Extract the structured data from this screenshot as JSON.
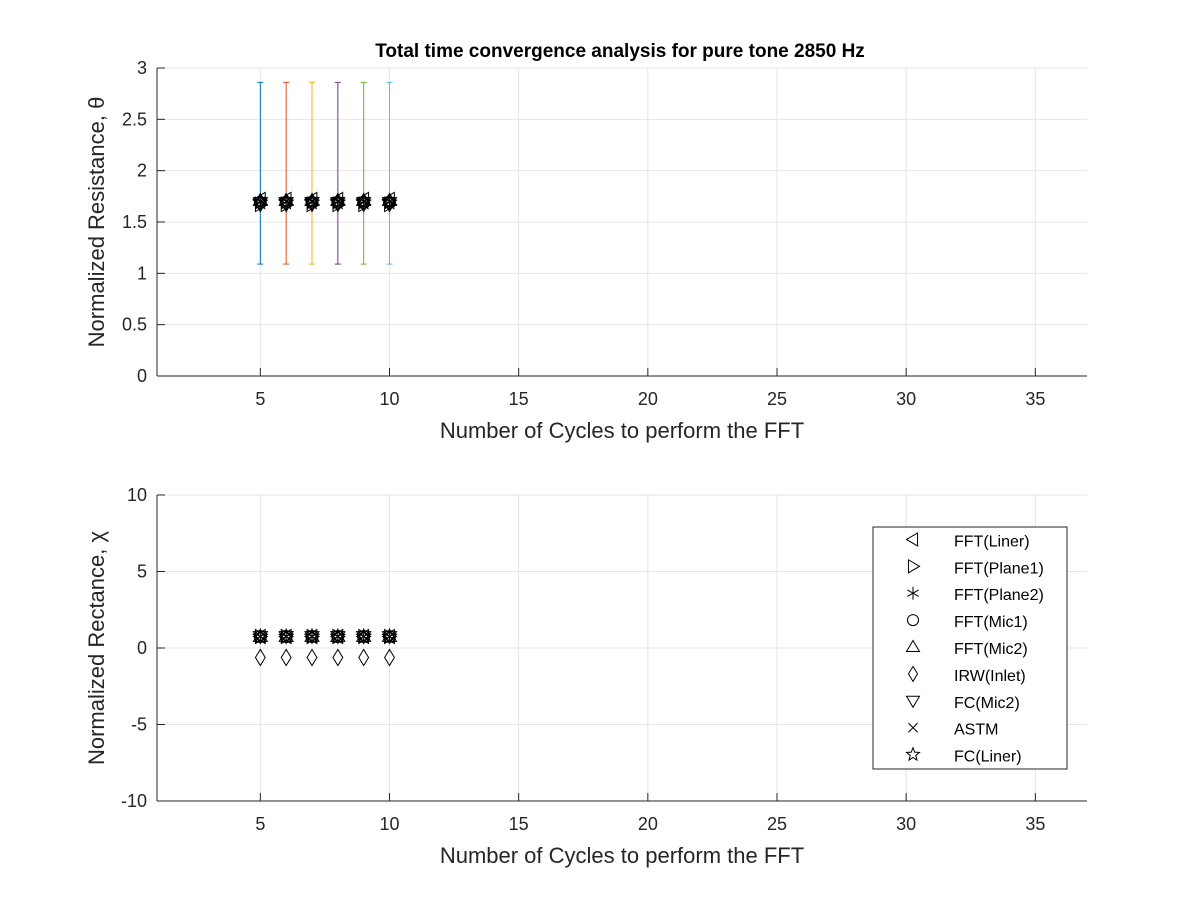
{
  "chart_data": [
    {
      "type": "scatter",
      "title": "Total time convergence analysis for pure tone 2850 Hz",
      "xlabel": "Number of Cycles to perform the FFT",
      "ylabel": "Normalized Resistance, θ",
      "xlim": [
        1,
        37
      ],
      "ylim": [
        0,
        3
      ],
      "xticks": [
        "5",
        "10",
        "15",
        "20",
        "25",
        "30",
        "35"
      ],
      "yticks": [
        "0",
        "0.5",
        "1",
        "1.5",
        "2",
        "2.5",
        "3"
      ],
      "grid": true,
      "x": [
        5,
        6,
        7,
        8,
        9,
        10
      ],
      "errorbars": {
        "lower": [
          1.09,
          1.09,
          1.09,
          1.09,
          1.09,
          1.09
        ],
        "upper": [
          2.86,
          2.86,
          2.86,
          2.86,
          2.86,
          2.86
        ],
        "colors": [
          "#0072BD",
          "#D95319",
          "#EDB120",
          "#7E2F8E",
          "#77AC30",
          "#4DBEEE"
        ]
      },
      "series": [
        {
          "name": "FFT(Liner)",
          "marker": "triangle-left",
          "values": [
            1.72,
            1.72,
            1.72,
            1.72,
            1.72,
            1.72
          ]
        },
        {
          "name": "FFT(Plane1)",
          "marker": "triangle-right",
          "values": [
            1.67,
            1.67,
            1.67,
            1.67,
            1.67,
            1.67
          ]
        },
        {
          "name": "FFT(Plane2)",
          "marker": "asterisk",
          "values": [
            1.7,
            1.7,
            1.7,
            1.7,
            1.7,
            1.7
          ]
        },
        {
          "name": "FFT(Mic1)",
          "marker": "circle",
          "values": [
            1.69,
            1.69,
            1.69,
            1.69,
            1.69,
            1.69
          ]
        },
        {
          "name": "FFT(Mic2)",
          "marker": "triangle-up",
          "values": [
            1.71,
            1.71,
            1.71,
            1.71,
            1.71,
            1.71
          ]
        },
        {
          "name": "IRW(Inlet)",
          "marker": "diamond",
          "values": [
            1.68,
            1.68,
            1.68,
            1.68,
            1.68,
            1.68
          ]
        },
        {
          "name": "FC(Mic2)",
          "marker": "triangle-down",
          "values": [
            1.69,
            1.69,
            1.69,
            1.69,
            1.69,
            1.69
          ]
        },
        {
          "name": "ASTM",
          "marker": "cross",
          "values": [
            1.7,
            1.7,
            1.7,
            1.7,
            1.7,
            1.7
          ]
        },
        {
          "name": "FC(Liner)",
          "marker": "star",
          "values": [
            1.69,
            1.69,
            1.69,
            1.69,
            1.69,
            1.69
          ]
        }
      ]
    },
    {
      "type": "scatter",
      "title": "",
      "xlabel": "Number of Cycles to perform the FFT",
      "ylabel": "Normalized Rectance, χ",
      "xlim": [
        1,
        37
      ],
      "ylim": [
        -10,
        10
      ],
      "xticks": [
        "5",
        "10",
        "15",
        "20",
        "25",
        "30",
        "35"
      ],
      "yticks": [
        "-10",
        "-5",
        "0",
        "5",
        "10"
      ],
      "grid": true,
      "legend_position": "right",
      "x": [
        5,
        6,
        7,
        8,
        9,
        10
      ],
      "series": [
        {
          "name": "FFT(Liner)",
          "marker": "triangle-left",
          "values": [
            0.75,
            0.75,
            0.75,
            0.75,
            0.75,
            0.75
          ]
        },
        {
          "name": "FFT(Plane1)",
          "marker": "triangle-right",
          "values": [
            0.75,
            0.75,
            0.75,
            0.75,
            0.75,
            0.75
          ]
        },
        {
          "name": "FFT(Plane2)",
          "marker": "asterisk",
          "values": [
            0.75,
            0.75,
            0.75,
            0.75,
            0.75,
            0.75
          ]
        },
        {
          "name": "FFT(Mic1)",
          "marker": "circle",
          "values": [
            0.75,
            0.75,
            0.75,
            0.75,
            0.75,
            0.75
          ]
        },
        {
          "name": "FFT(Mic2)",
          "marker": "triangle-up",
          "values": [
            0.75,
            0.75,
            0.75,
            0.75,
            0.75,
            0.75
          ]
        },
        {
          "name": "IRW(Inlet)",
          "marker": "diamond",
          "values": [
            -0.62,
            -0.62,
            -0.62,
            -0.62,
            -0.62,
            -0.62
          ]
        },
        {
          "name": "FC(Mic2)",
          "marker": "triangle-down",
          "values": [
            0.75,
            0.75,
            0.75,
            0.75,
            0.75,
            0.75
          ]
        },
        {
          "name": "ASTM",
          "marker": "cross",
          "values": [
            0.75,
            0.75,
            0.75,
            0.75,
            0.75,
            0.75
          ]
        },
        {
          "name": "FC(Liner)",
          "marker": "star",
          "values": [
            0.75,
            0.75,
            0.75,
            0.75,
            0.75,
            0.75
          ]
        }
      ]
    }
  ]
}
